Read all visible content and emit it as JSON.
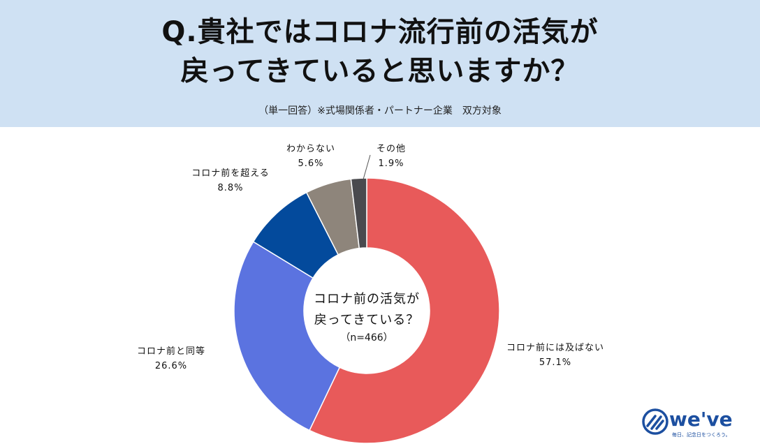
{
  "header": {
    "title_line1": "Q.貴社ではコロナ流行前の活気が",
    "title_line2": "戻ってきていると思いますか？",
    "subtitle": "（単一回答）※式場関係者・パートナー企業　双方対象"
  },
  "chart_data": {
    "type": "pie",
    "donut": true,
    "center_label_line1": "コロナ前の活気が",
    "center_label_line2": "戻ってきている？",
    "center_label_line3": "（n=466）",
    "slices": [
      {
        "label": "コロナ前には及ばない",
        "value": 57.1,
        "display": "57.1%",
        "color": "#e85a5a"
      },
      {
        "label": "コロナ前と同等",
        "value": 26.6,
        "display": "26.6%",
        "color": "#5b73e0"
      },
      {
        "label": "コロナ前を超える",
        "value": 8.8,
        "display": "8.8%",
        "color": "#034a9c"
      },
      {
        "label": "わからない",
        "value": 5.6,
        "display": "5.6%",
        "color": "#8e857b"
      },
      {
        "label": "その他",
        "value": 1.9,
        "display": "1.9%",
        "color": "#4a4a4e"
      }
    ]
  },
  "logo": {
    "wordmark": "we've",
    "tagline": "毎日、記念日をつくろう。",
    "brand_color": "#1c4fa0",
    "icon": "we-ve-logo-icon"
  }
}
